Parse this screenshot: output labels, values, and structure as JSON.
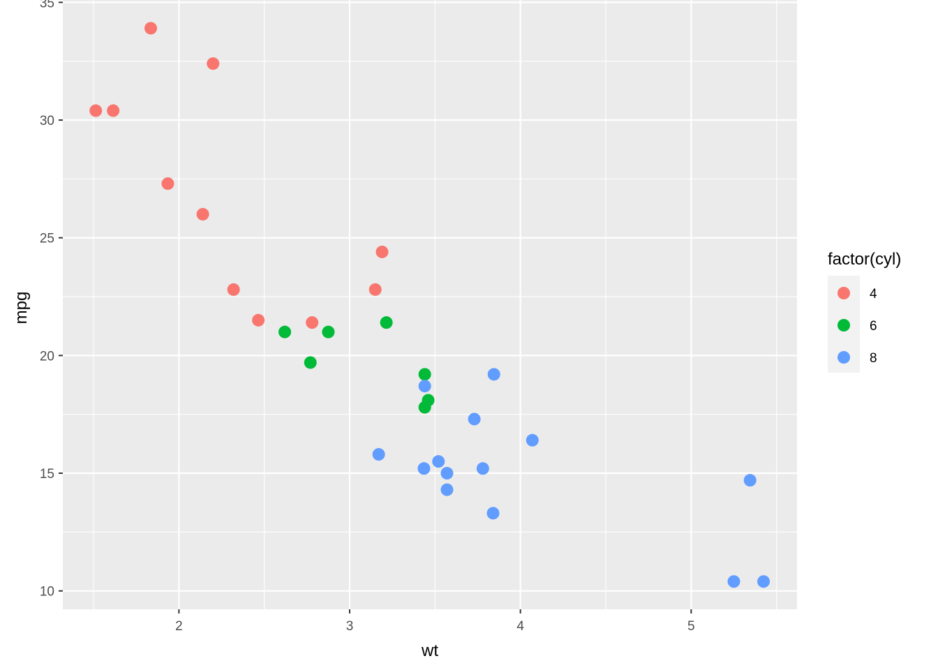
{
  "chart_data": {
    "type": "scatter",
    "xlabel": "wt",
    "ylabel": "mpg",
    "xlim": [
      1.32,
      5.62
    ],
    "ylim": [
      9.22,
      35.1
    ],
    "x_ticks": [
      2,
      3,
      4,
      5
    ],
    "x_tick_labels": [
      "2",
      "3",
      "4",
      "5"
    ],
    "y_ticks": [
      10,
      15,
      20,
      25,
      30,
      35
    ],
    "y_tick_labels": [
      "10",
      "15",
      "20",
      "25",
      "30",
      "35"
    ],
    "grid": true,
    "legend": {
      "title": "factor(cyl)",
      "position": "right"
    },
    "series": [
      {
        "name": "4",
        "color": "#F8766D",
        "points": [
          {
            "x": 2.32,
            "y": 22.8
          },
          {
            "x": 3.19,
            "y": 24.4
          },
          {
            "x": 3.15,
            "y": 22.8
          },
          {
            "x": 2.2,
            "y": 32.4
          },
          {
            "x": 1.615,
            "y": 30.4
          },
          {
            "x": 1.835,
            "y": 33.9
          },
          {
            "x": 2.465,
            "y": 21.5
          },
          {
            "x": 1.935,
            "y": 27.3
          },
          {
            "x": 2.14,
            "y": 26.0
          },
          {
            "x": 1.513,
            "y": 30.4
          },
          {
            "x": 2.78,
            "y": 21.4
          }
        ]
      },
      {
        "name": "6",
        "color": "#00BA38",
        "points": [
          {
            "x": 2.62,
            "y": 21.0
          },
          {
            "x": 2.875,
            "y": 21.0
          },
          {
            "x": 3.215,
            "y": 21.4
          },
          {
            "x": 3.46,
            "y": 18.1
          },
          {
            "x": 3.44,
            "y": 19.2
          },
          {
            "x": 3.44,
            "y": 17.8
          },
          {
            "x": 2.77,
            "y": 19.7
          }
        ]
      },
      {
        "name": "8",
        "color": "#619CFF",
        "points": [
          {
            "x": 3.44,
            "y": 18.7
          },
          {
            "x": 3.57,
            "y": 14.3
          },
          {
            "x": 4.07,
            "y": 16.4
          },
          {
            "x": 3.73,
            "y": 17.3
          },
          {
            "x": 3.78,
            "y": 15.2
          },
          {
            "x": 5.25,
            "y": 10.4
          },
          {
            "x": 5.424,
            "y": 10.4
          },
          {
            "x": 5.345,
            "y": 14.7
          },
          {
            "x": 3.52,
            "y": 15.5
          },
          {
            "x": 3.435,
            "y": 15.2
          },
          {
            "x": 3.84,
            "y": 13.3
          },
          {
            "x": 3.845,
            "y": 19.2
          },
          {
            "x": 3.17,
            "y": 15.8
          },
          {
            "x": 3.57,
            "y": 15.0
          }
        ]
      }
    ]
  }
}
